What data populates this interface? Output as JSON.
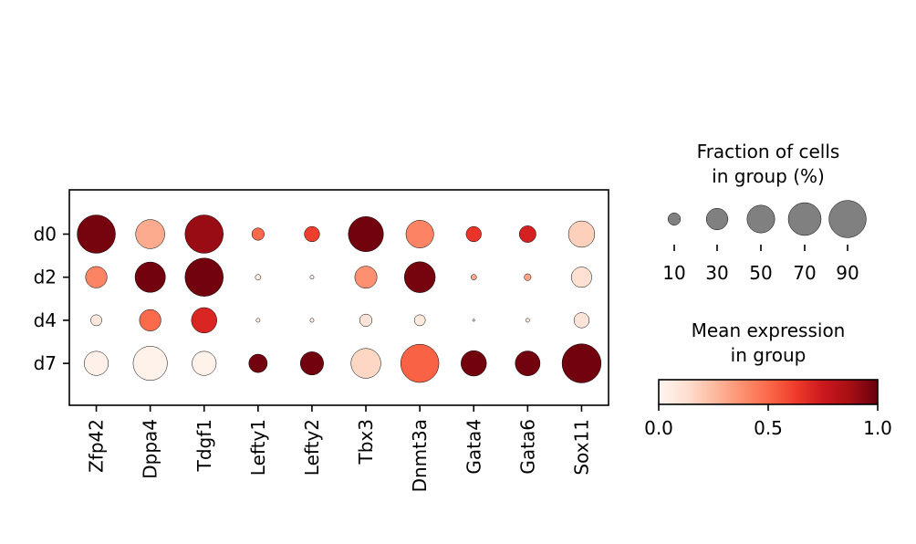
{
  "chart_data": {
    "type": "dotplot",
    "groups": [
      "d0",
      "d2",
      "d4",
      "d7"
    ],
    "genes": [
      "Zfp42",
      "Dppa4",
      "Tdgf1",
      "Lefty1",
      "Lefty2",
      "Tbx3",
      "Dnmt3a",
      "Gata4",
      "Gata6",
      "Sox11"
    ],
    "fraction_pct": [
      [
        95,
        55,
        95,
        10,
        15,
        80,
        50,
        15,
        18,
        45
      ],
      [
        30,
        60,
        95,
        2,
        1,
        32,
        62,
        2,
        3,
        27
      ],
      [
        8,
        30,
        42,
        1,
        1,
        10,
        8,
        0.3,
        1,
        15
      ],
      [
        38,
        76,
        38,
        22,
        35,
        58,
        95,
        42,
        40,
        99
      ]
    ],
    "mean_expression": [
      [
        0.97,
        0.3,
        0.9,
        0.5,
        0.62,
        0.98,
        0.42,
        0.65,
        0.72,
        0.18
      ],
      [
        0.42,
        0.98,
        0.98,
        0.05,
        0.05,
        0.38,
        0.97,
        0.3,
        0.32,
        0.12
      ],
      [
        0.08,
        0.5,
        0.7,
        0.05,
        0.05,
        0.1,
        0.07,
        0.05,
        0.05,
        0.1
      ],
      [
        0.03,
        0.02,
        0.02,
        0.98,
        0.98,
        0.16,
        0.52,
        0.98,
        0.98,
        0.98
      ]
    ],
    "size_legend": {
      "title": [
        "Fraction of cells",
        "in group (%)"
      ],
      "values": [
        10,
        30,
        50,
        70,
        90
      ],
      "labels": [
        "10",
        "30",
        "50",
        "70",
        "90"
      ]
    },
    "color_legend": {
      "title": [
        "Mean expression",
        "in group"
      ],
      "range": [
        0,
        1
      ],
      "tick_labels": [
        "0.0",
        "0.5",
        "1.0"
      ],
      "colormap": "Reds",
      "stops": [
        "#fff5f0",
        "#fee0d2",
        "#fcbba1",
        "#fc9272",
        "#fb6a4a",
        "#ef3b2c",
        "#cb181d",
        "#a50f15",
        "#67000d"
      ]
    },
    "dot_edge_color": "#000000",
    "size_legend_dot_color": "#808080"
  }
}
